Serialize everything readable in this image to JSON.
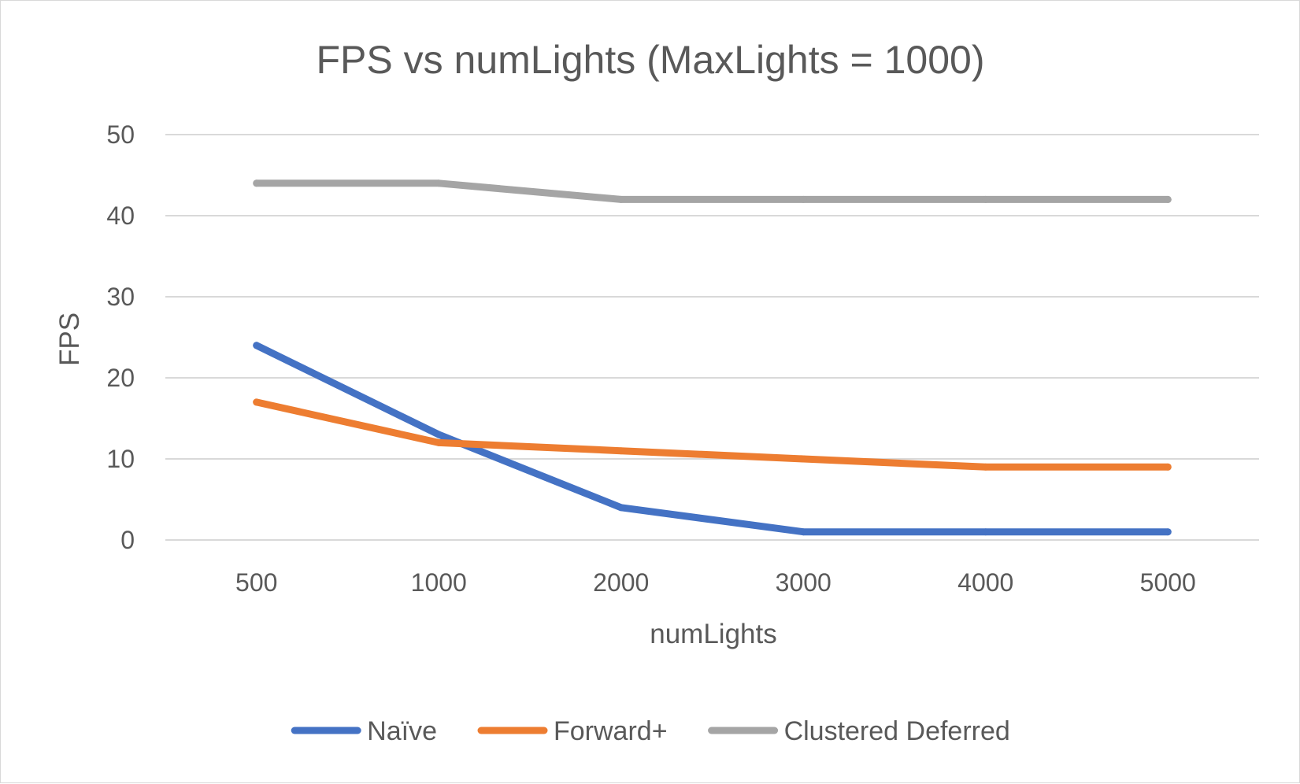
{
  "chart_data": {
    "type": "line",
    "title": "FPS vs numLights (MaxLights = 1000)",
    "xlabel": "numLights",
    "ylabel": "FPS",
    "categories": [
      "500",
      "1000",
      "2000",
      "3000",
      "4000",
      "5000"
    ],
    "ylim": [
      0,
      50
    ],
    "yticks": [
      "0",
      "10",
      "20",
      "30",
      "40",
      "50"
    ],
    "grid": true,
    "legend_position": "bottom",
    "series": [
      {
        "name": "Naïve",
        "color": "#4472c4",
        "values": [
          24,
          13,
          4,
          1,
          1,
          1
        ]
      },
      {
        "name": "Forward+",
        "color": "#ed7d31",
        "values": [
          17,
          12,
          11,
          10,
          9,
          9
        ]
      },
      {
        "name": "Clustered Deferred",
        "color": "#a5a5a5",
        "values": [
          44,
          44,
          42,
          42,
          42,
          42
        ]
      }
    ]
  }
}
